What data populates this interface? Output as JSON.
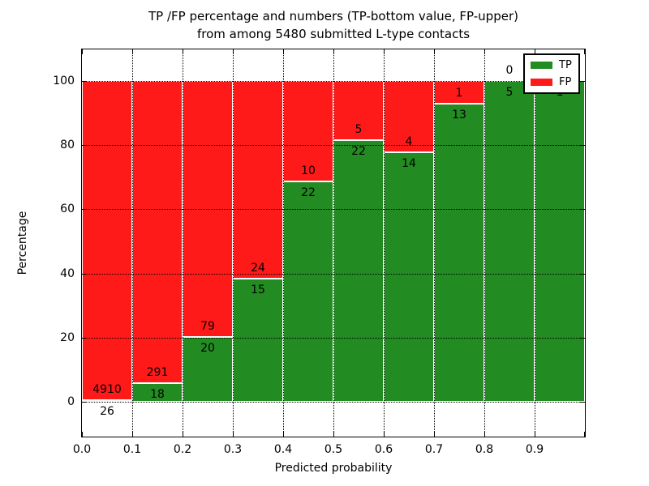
{
  "figure": {
    "title_line1": "TP /FP percentage and numbers (TP-bottom value, FP-upper)",
    "title_line2": "from among 5480 submitted L-type contacts",
    "xlabel": "Predicted probability",
    "ylabel": "Percentage"
  },
  "chart_data": {
    "type": "bar",
    "variant": "stacked-percentage-histogram",
    "title": "TP /FP percentage and numbers (TP-bottom value, FP-upper) from among 5480 submitted L-type contacts",
    "xlabel": "Predicted probability",
    "ylabel": "Percentage",
    "total_contacts": 5480,
    "bin_width": 0.1,
    "x_tick_labels": [
      "0.0",
      "0.1",
      "0.2",
      "0.3",
      "0.4",
      "0.5",
      "0.6",
      "0.7",
      "0.8",
      "0.9"
    ],
    "y_ticks_pct": [
      0,
      20,
      40,
      60,
      80,
      100
    ],
    "ylim_pct": [
      -11,
      110
    ],
    "grid": true,
    "colors": {
      "tp": "#228B22",
      "fp": "#FF1A1A",
      "bar_edge": "#ffffff",
      "grid": "#000000"
    },
    "legend": {
      "position": "upper right",
      "entries": [
        {
          "label": "TP",
          "color": "#228B22"
        },
        {
          "label": "FP",
          "color": "#FF1A1A"
        }
      ]
    },
    "bins": [
      {
        "x_start": 0.0,
        "x_end": 0.1,
        "tp_count": 26,
        "fp_count": 4910,
        "tp_pct": 0.53,
        "fp_pct": 99.47,
        "tp_label": "26",
        "fp_label": "4910"
      },
      {
        "x_start": 0.1,
        "x_end": 0.2,
        "tp_count": 18,
        "fp_count": 291,
        "tp_pct": 5.83,
        "fp_pct": 94.17,
        "tp_label": "18",
        "fp_label": "291"
      },
      {
        "x_start": 0.2,
        "x_end": 0.3,
        "tp_count": 20,
        "fp_count": 79,
        "tp_pct": 20.2,
        "fp_pct": 79.8,
        "tp_label": "20",
        "fp_label": "79"
      },
      {
        "x_start": 0.3,
        "x_end": 0.4,
        "tp_count": 15,
        "fp_count": 24,
        "tp_pct": 38.46,
        "fp_pct": 61.54,
        "tp_label": "15",
        "fp_label": "24"
      },
      {
        "x_start": 0.4,
        "x_end": 0.5,
        "tp_count": 22,
        "fp_count": 10,
        "tp_pct": 68.75,
        "fp_pct": 31.25,
        "tp_label": "22",
        "fp_label": "10"
      },
      {
        "x_start": 0.5,
        "x_end": 0.6,
        "tp_count": 22,
        "fp_count": 5,
        "tp_pct": 81.48,
        "fp_pct": 18.52,
        "tp_label": "22",
        "fp_label": "5"
      },
      {
        "x_start": 0.6,
        "x_end": 0.7,
        "tp_count": 14,
        "fp_count": 4,
        "tp_pct": 77.78,
        "fp_pct": 22.22,
        "tp_label": "14",
        "fp_label": "4"
      },
      {
        "x_start": 0.7,
        "x_end": 0.8,
        "tp_count": 13,
        "fp_count": 1,
        "tp_pct": 92.86,
        "fp_pct": 7.14,
        "tp_label": "13",
        "fp_label": "1"
      },
      {
        "x_start": 0.8,
        "x_end": 0.9,
        "tp_count": 5,
        "fp_count": 0,
        "tp_pct": 100,
        "fp_pct": 0,
        "tp_label": "5",
        "fp_label": "0"
      },
      {
        "x_start": 0.9,
        "x_end": 1.0,
        "tp_count": 1,
        "fp_count": 0,
        "tp_pct": 100,
        "fp_pct": 0,
        "tp_label": "1",
        "fp_label": ""
      }
    ]
  }
}
